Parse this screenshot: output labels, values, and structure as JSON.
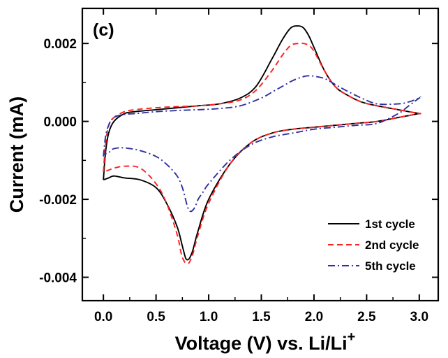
{
  "chart_data": {
    "type": "line",
    "panel_label": "(c)",
    "xlabel": "Voltage (V) vs. Li/Li",
    "xlabel_superscript": "+",
    "ylabel": "Current (mA)",
    "xlim": [
      -0.2,
      3.18
    ],
    "ylim": [
      -0.0046,
      0.0029
    ],
    "x_ticks": [
      0.0,
      0.5,
      1.0,
      1.5,
      2.0,
      2.5,
      3.0
    ],
    "x_tick_labels": [
      "0.0",
      "0.5",
      "1.0",
      "1.5",
      "2.0",
      "2.5",
      "3.0"
    ],
    "y_ticks": [
      0.002,
      0.0,
      -0.002,
      -0.004
    ],
    "y_tick_labels": [
      "0.002",
      "0.000",
      "-0.002",
      "-0.004"
    ],
    "grid": false,
    "legend_position": "bottom-right",
    "series": [
      {
        "name": "1st cycle",
        "color": "#000000",
        "dash": "solid",
        "x": [
          0.0,
          0.02,
          0.05,
          0.1,
          0.2,
          0.3,
          0.5,
          0.7,
          0.9,
          1.1,
          1.3,
          1.45,
          1.6,
          1.7,
          1.78,
          1.85,
          1.9,
          1.95,
          2.0,
          2.1,
          2.2,
          2.3,
          2.45,
          2.6,
          2.8,
          2.9,
          3.0,
          3.0,
          2.9,
          2.8,
          2.6,
          2.4,
          2.2,
          2.0,
          1.8,
          1.6,
          1.4,
          1.2,
          1.0,
          0.9,
          0.85,
          0.82,
          0.8,
          0.78,
          0.75,
          0.7,
          0.6,
          0.5,
          0.35,
          0.2,
          0.1,
          0.05,
          0.0
        ],
        "y": [
          -0.0015,
          -0.0008,
          -0.0003,
          0.0,
          0.0002,
          0.00025,
          0.0003,
          0.00035,
          0.0004,
          0.00045,
          0.0006,
          0.0009,
          0.0016,
          0.0021,
          0.0024,
          0.00245,
          0.0024,
          0.0022,
          0.0019,
          0.0013,
          0.0009,
          0.0007,
          0.0005,
          0.0004,
          0.0003,
          0.00025,
          0.0002,
          0.0002,
          0.00015,
          0.0001,
          0.0,
          -5e-05,
          -0.0001,
          -0.00015,
          -0.0002,
          -0.0003,
          -0.00055,
          -0.0011,
          -0.002,
          -0.0028,
          -0.0033,
          -0.0035,
          -0.00355,
          -0.0035,
          -0.0032,
          -0.0027,
          -0.0021,
          -0.0017,
          -0.0015,
          -0.00145,
          -0.0014,
          -0.00145,
          -0.0015
        ]
      },
      {
        "name": "2nd cycle",
        "color": "#ff2020",
        "dash": "8,5",
        "x": [
          0.0,
          0.02,
          0.05,
          0.1,
          0.2,
          0.3,
          0.5,
          0.7,
          0.9,
          1.1,
          1.3,
          1.45,
          1.6,
          1.7,
          1.78,
          1.85,
          1.9,
          1.95,
          2.0,
          2.1,
          2.2,
          2.3,
          2.45,
          2.6,
          2.8,
          2.9,
          3.0,
          3.0,
          2.9,
          2.8,
          2.6,
          2.4,
          2.2,
          2.0,
          1.8,
          1.6,
          1.4,
          1.2,
          1.0,
          0.9,
          0.85,
          0.82,
          0.8,
          0.77,
          0.74,
          0.7,
          0.6,
          0.5,
          0.35,
          0.2,
          0.1,
          0.05,
          0.0
        ],
        "y": [
          -0.0013,
          -0.0006,
          -0.0001,
          0.0001,
          0.00025,
          0.0003,
          0.00035,
          0.00038,
          0.0004,
          0.00045,
          0.00055,
          0.0008,
          0.0013,
          0.0017,
          0.00195,
          0.002,
          0.002,
          0.00195,
          0.0018,
          0.0013,
          0.0009,
          0.0007,
          0.0005,
          0.0004,
          0.0003,
          0.00025,
          0.0002,
          0.0002,
          0.00015,
          0.0001,
          0.0,
          -5e-05,
          -0.0001,
          -0.00015,
          -0.0002,
          -0.0003,
          -0.00055,
          -0.0011,
          -0.0021,
          -0.0029,
          -0.0034,
          -0.0036,
          -0.00365,
          -0.0036,
          -0.0034,
          -0.0029,
          -0.0021,
          -0.0016,
          -0.0012,
          -0.00115,
          -0.0012,
          -0.00125,
          -0.0013
        ]
      },
      {
        "name": "5th cycle",
        "color": "#3030a0",
        "dash": "10,4,2,4",
        "x": [
          0.0,
          0.02,
          0.05,
          0.1,
          0.2,
          0.3,
          0.5,
          0.7,
          0.9,
          1.1,
          1.3,
          1.5,
          1.6,
          1.7,
          1.8,
          1.9,
          1.95,
          2.0,
          2.1,
          2.2,
          2.3,
          2.45,
          2.6,
          2.8,
          2.9,
          3.0,
          3.0,
          2.9,
          2.8,
          2.6,
          2.4,
          2.2,
          2.0,
          1.8,
          1.6,
          1.4,
          1.2,
          1.0,
          0.95,
          0.9,
          0.87,
          0.84,
          0.82,
          0.8,
          0.78,
          0.75,
          0.7,
          0.6,
          0.5,
          0.35,
          0.2,
          0.1,
          0.05,
          0.0
        ],
        "y": [
          -0.0009,
          -0.0004,
          -0.0001,
          0.0001,
          0.00018,
          0.0002,
          0.00025,
          0.00028,
          0.0003,
          0.00033,
          0.0004,
          0.0006,
          0.00075,
          0.0009,
          0.00105,
          0.00115,
          0.00117,
          0.00116,
          0.0011,
          0.00095,
          0.0008,
          0.0006,
          0.00045,
          0.00045,
          0.0005,
          0.0006,
          0.0006,
          0.0004,
          0.0002,
          -5e-05,
          -0.0001,
          -0.00015,
          -0.0002,
          -0.0003,
          -0.0004,
          -0.0006,
          -0.001,
          -0.0016,
          -0.0018,
          -0.002,
          -0.0022,
          -0.0023,
          -0.0023,
          -0.0022,
          -0.002,
          -0.0017,
          -0.0014,
          -0.0011,
          -0.0009,
          -0.00075,
          -0.00068,
          -0.0007,
          -0.0008,
          -0.00085
        ]
      }
    ]
  }
}
